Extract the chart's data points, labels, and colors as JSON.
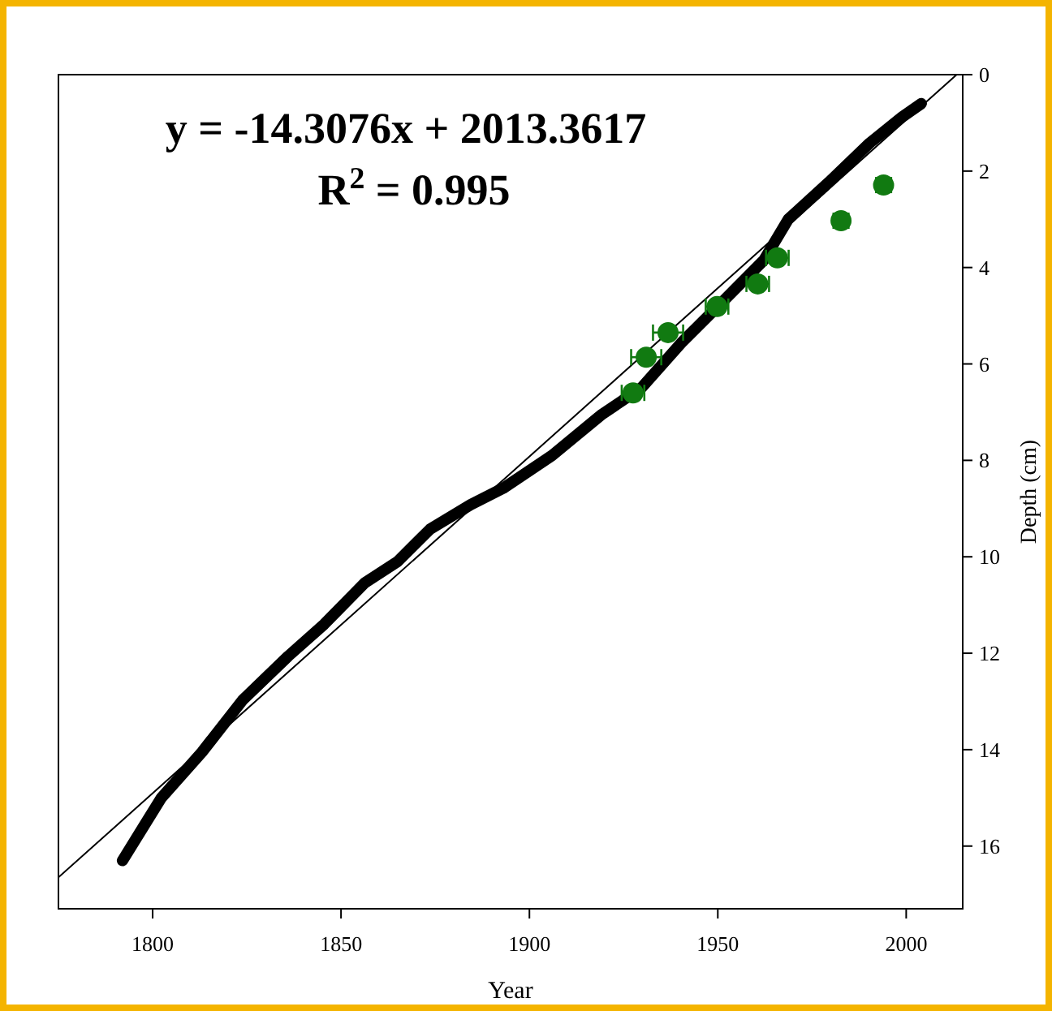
{
  "chart_data": {
    "type": "line",
    "xlabel": "Year",
    "ylabel": "Depth (cm)",
    "xlim": [
      1775,
      2015
    ],
    "xticks": [
      1800,
      1850,
      1900,
      1950,
      2000
    ],
    "ylim": [
      17.3,
      0
    ],
    "yticks": [
      0,
      2,
      4,
      6,
      8,
      10,
      12,
      14,
      16
    ],
    "grid": false,
    "annotations": [
      "y = -14.3076x + 2013.3617",
      "R$^{2}$ = 0.995"
    ],
    "series": [
      {
        "color": "#000000",
        "marker": "none",
        "x": [
          1792,
          1802.3,
          1813.1,
          1823.9,
          1836,
          1845.5,
          1856.3,
          1865,
          1873.6,
          1884.4,
          1893,
          1906,
          1919,
          1929.8,
          1940.6,
          1951.4,
          1962.2,
          1968.7,
          1979.5,
          1990.3,
          1998.9,
          2004
        ],
        "values": [
          16.3,
          15.0,
          14.05,
          12.97,
          12.06,
          11.4,
          10.54,
          10.1,
          9.43,
          8.92,
          8.58,
          7.9,
          7.06,
          6.49,
          5.54,
          4.7,
          3.85,
          3.0,
          2.23,
          1.42,
          0.88,
          0.6
        ]
      },
      {
        "type": "line",
        "color": "#000000",
        "marker": "none",
        "x": [
          1775,
          2013.4
        ],
        "values": [
          16.65,
          0
        ]
      },
      {
        "type": "scatter",
        "color": "#117a11",
        "marker": "circle",
        "x": [
          1927.5,
          1931,
          1936.8,
          1949.8,
          1960.6,
          1965.8,
          1982.7,
          1994
        ],
        "values": [
          6.6,
          5.86,
          5.35,
          4.81,
          4.34,
          3.8,
          3.03,
          2.29
        ],
        "xerrors": [
          3,
          4,
          4,
          3,
          3,
          3,
          2,
          2
        ]
      }
    ]
  }
}
